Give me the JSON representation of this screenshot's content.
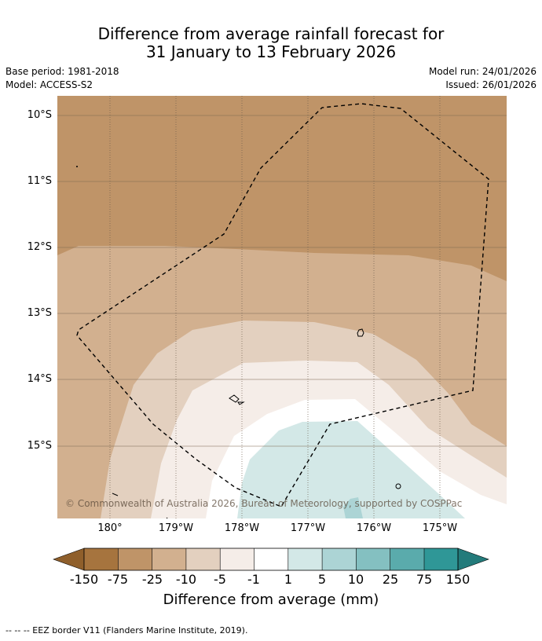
{
  "title": {
    "line1": "Difference from average rainfall forecast for",
    "line2": "31 January to 13 February 2026"
  },
  "meta": {
    "base_period": "Base period: 1981-2018",
    "model": "Model: ACCESS-S2",
    "model_run": "Model run: 24/01/2026",
    "issued": "Issued: 26/01/2026"
  },
  "map": {
    "latitude_labels": [
      "10°S",
      "11°S",
      "12°S",
      "13°S",
      "14°S",
      "15°S"
    ],
    "longitude_labels": [
      "180°",
      "179°W",
      "178°W",
      "177°W",
      "176°W",
      "175°W"
    ],
    "copyright": "© Commonwealth of Australia 2026, Bureau of Meteorology, supported by COSPPac"
  },
  "colorbar": {
    "ticks": [
      "-150",
      "-75",
      "-25",
      "-10",
      "-5",
      "-1",
      "1",
      "5",
      "10",
      "25",
      "75",
      "150"
    ],
    "colors": [
      "#a6743e",
      "#bf9468",
      "#d2b08f",
      "#e3d0bf",
      "#f5ede8",
      "#ffffff",
      "#d3e8e7",
      "#acd4d5",
      "#84c0c1",
      "#5aabac",
      "#2f9797"
    ],
    "under_color": "#8f5f2b",
    "over_color": "#237b7b",
    "label": "Difference from average (mm)"
  },
  "footnote": "-- -- -- EEZ border V11 (Flanders Marine Institute, 2019)."
}
